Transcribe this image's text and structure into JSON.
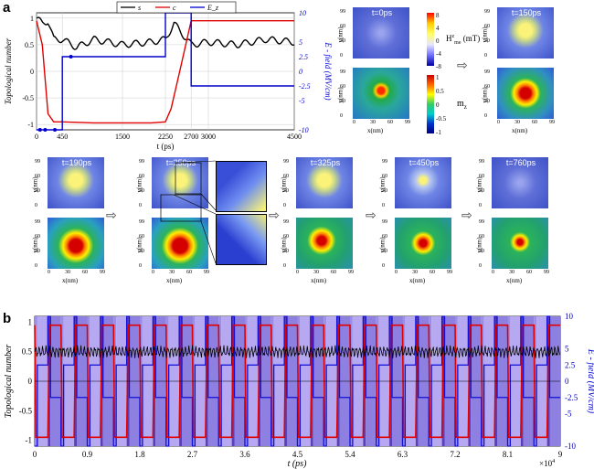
{
  "figure": {
    "panel_a_letter": "a",
    "panel_b_letter": "b"
  },
  "panel_a_chart": {
    "legend": [
      "s",
      "c",
      "E_z"
    ],
    "ylabel_left": "Topological number",
    "ylabel_right": "E - field (MV/cm)",
    "xlabel": "t (ps)",
    "xticks": [
      "0",
      "450",
      "1500",
      "2250",
      "2700",
      "3000",
      "4500"
    ],
    "yticks_left": [
      "1",
      "0.5",
      "0",
      "-0.5",
      "-1"
    ],
    "yticks_right": [
      "10",
      "5",
      "2.5",
      "0",
      "-2.5",
      "-5",
      "-10"
    ]
  },
  "colorbars": {
    "h_ticks": [
      "8",
      "4",
      "0",
      "-4",
      "-8"
    ],
    "h_label": "H",
    "h_label_sup": "z",
    "h_label_sub": "me",
    "h_unit": "(mT)",
    "m_ticks": [
      "1",
      "0.5",
      "0",
      "-0.5",
      "-1"
    ],
    "m_label": "m",
    "m_label_sub": "z"
  },
  "snapshots": [
    {
      "t": "t=0ps"
    },
    {
      "t": "t=150ps"
    },
    {
      "t": "t=190ps"
    },
    {
      "t": "t=250ps"
    },
    {
      "t": "t=325ps"
    },
    {
      "t": "t=450ps"
    },
    {
      "t": "t=760ps"
    }
  ],
  "snapshot_axes": {
    "ylabel": "y(nm)",
    "xlabel": "x(nm)",
    "yticks": [
      "99",
      "60",
      "30",
      "0"
    ],
    "xticks": [
      "0",
      "30",
      "60",
      "99"
    ]
  },
  "panel_b_chart": {
    "ylabel_left": "Topological number",
    "ylabel_right": "E - field (MV/cm)",
    "xlabel": "t (ps)",
    "xticks": [
      "0",
      "0.9",
      "1.8",
      "2.7",
      "3.6",
      "4.5",
      "5.4",
      "6.3",
      "7.2",
      "8.1",
      "9"
    ],
    "x_multiplier": "×10",
    "x_multiplier_exp": "4",
    "yticks_left": [
      "1",
      "0.5",
      "0",
      "-0.5",
      "-1"
    ],
    "yticks_right": [
      "10",
      "5",
      "2.5",
      "0",
      "-2.5",
      "-5",
      "-10"
    ]
  },
  "chart_data": [
    {
      "type": "line",
      "xlabel": "t (ps)",
      "ylabel": "Topological number",
      "y2label": "E - field (MV/cm)",
      "xlim": [
        0,
        4500
      ],
      "ylim": [
        -1.1,
        1.1
      ],
      "y2lim": [
        -10,
        10
      ],
      "legend_position": "top",
      "series": [
        {
          "name": "s",
          "color": "#000000",
          "x": [
            0,
            100,
            200,
            300,
            450,
            700,
            1000,
            1500,
            2000,
            2250,
            2400,
            2700,
            3000,
            3500,
            4000,
            4500
          ],
          "y": [
            1.0,
            0.9,
            0.95,
            0.6,
            0.6,
            0.45,
            0.6,
            0.5,
            0.55,
            0.6,
            0.9,
            0.5,
            0.55,
            0.5,
            0.6,
            0.55
          ]
        },
        {
          "name": "c",
          "color": "#e00000",
          "x": [
            0,
            100,
            200,
            300,
            450,
            1000,
            2000,
            2250,
            2350,
            2500,
            2700,
            3000,
            4500
          ],
          "y": [
            0.95,
            0.5,
            -0.8,
            -0.95,
            -0.95,
            -0.97,
            -0.97,
            -0.95,
            -0.7,
            0.0,
            0.95,
            0.95,
            0.95
          ]
        },
        {
          "name": "E_z",
          "color": "#0000cc",
          "x": [
            0,
            450,
            450,
            2250,
            2250,
            2700,
            2700,
            4500
          ],
          "y": [
            -10,
            -10,
            2.5,
            2.5,
            10,
            10,
            -2.5,
            -2.5
          ]
        }
      ]
    },
    {
      "type": "line",
      "xlabel": "t (ps)",
      "ylabel": "Topological number",
      "y2label": "E - field (MV/cm)",
      "xlim": [
        0,
        90000
      ],
      "ylim": [
        -1.1,
        1.1
      ],
      "y2lim": [
        -10,
        10
      ],
      "period": 4500,
      "cycles": 20,
      "series": [
        {
          "name": "s",
          "color": "#000000",
          "description_value": 0.5
        },
        {
          "name": "c",
          "color": "#e00000",
          "low": -0.95,
          "high": 0.95
        },
        {
          "name": "E_z",
          "color": "#0000cc",
          "levels": [
            -10,
            2.5,
            10,
            -2.5
          ]
        }
      ]
    }
  ]
}
